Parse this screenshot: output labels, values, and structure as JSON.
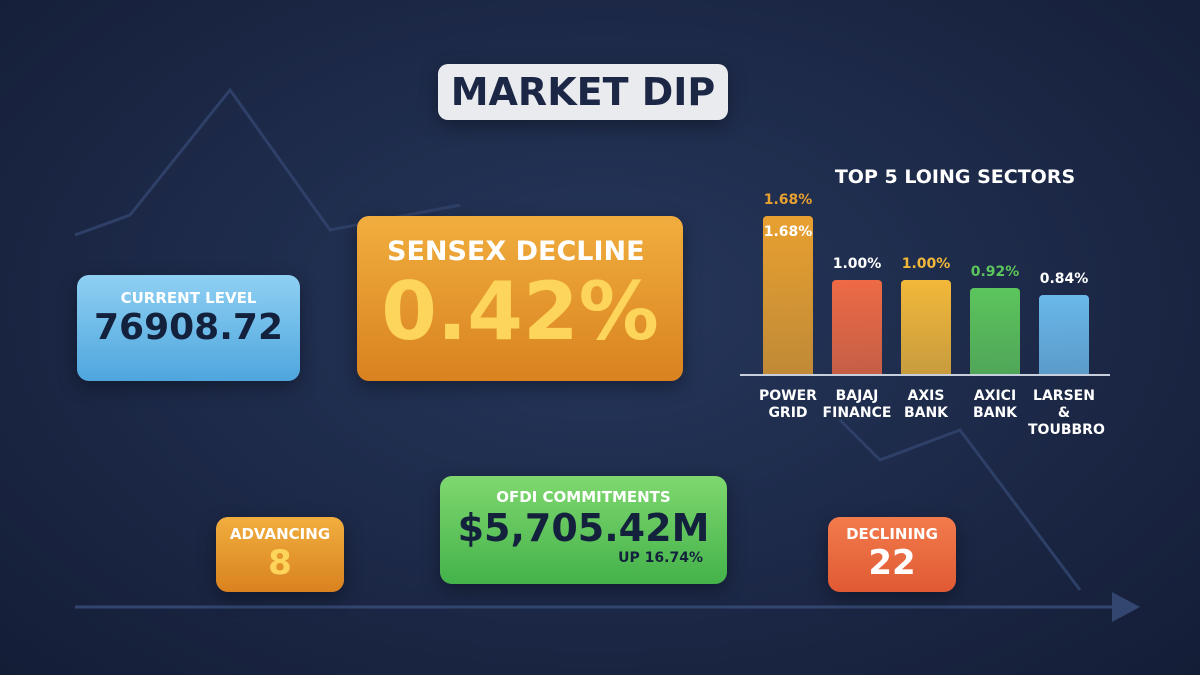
{
  "title": "MARKET DIP",
  "current_level": {
    "label": "CURRENT LEVEL",
    "value": "76908.72"
  },
  "sensex": {
    "label": "SENSEX DECLINE",
    "value": "0.42%"
  },
  "ofdi": {
    "label": "OFDI COMMITMENTS",
    "value": "$5,705.42M",
    "change": "UP 16.74%"
  },
  "advancing": {
    "label": "ADVANCING",
    "value": "8"
  },
  "declining": {
    "label": "DECLINING",
    "value": "22"
  },
  "chart_data": {
    "type": "bar",
    "title": "TOP 5 LOING SECTORS",
    "categories": [
      "POWER GRID",
      "BAJAJ FINANCE",
      "AXIS BANK",
      "AXICI BANK",
      "LARSEN & TOUBBRO"
    ],
    "values": [
      1.68,
      1.0,
      1.0,
      0.92,
      0.84
    ],
    "value_labels": [
      "1.68%",
      "1.00%",
      "1.00%",
      "0.92%",
      "0.84%"
    ],
    "colors": [
      "#e8a030",
      "#ee6a45",
      "#f2b83a",
      "#5cc55c",
      "#6ab8ea"
    ]
  }
}
